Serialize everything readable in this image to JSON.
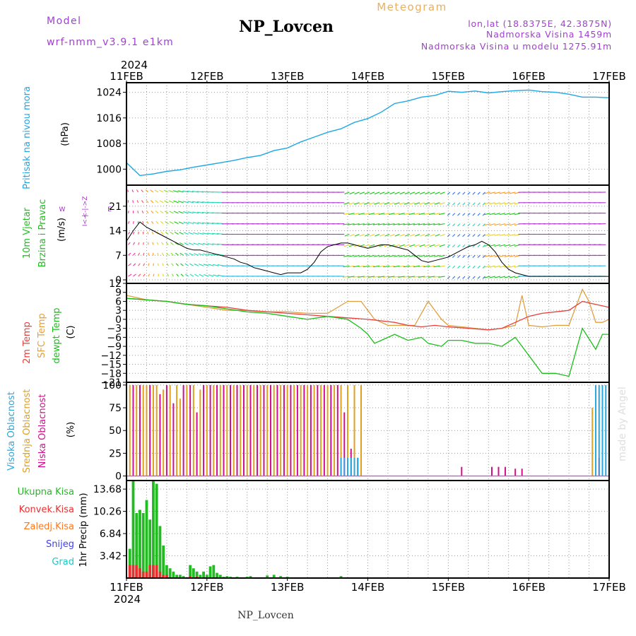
{
  "header": {
    "model_label": "Model",
    "model_name": "wrf-nmm_v3.9.1 e1km",
    "station": "NP_Lovcen",
    "product": "Meteogram",
    "lonlat": "lon,lat (18.8375E, 42.3875N)",
    "elevation": "Nadmorska Visina 1459m",
    "model_elevation": "Nadmorska Visina u modelu 1275.91m",
    "footer_station": "NP_Lovcen",
    "watermark": "made by Angel"
  },
  "colors": {
    "pressure": "#1ea7e6",
    "wind_label": "#1cc01c",
    "wind_dir_label": "#a030c8",
    "temp2m": "#e8403c",
    "sfc": "#e0a040",
    "dewpt": "#18c018",
    "cloud_high": "#28a8e0",
    "cloud_mid": "#e0a020",
    "cloud_low": "#d0108a",
    "precip_total": "#22bb22",
    "precip_conv": "#e83030",
    "precip_strat": "#ff7820",
    "snow": "#4040e8",
    "graupel": "#20c8c8",
    "title": "#000000",
    "meta": "#a040d0",
    "meteogram": "#e8b060"
  },
  "time_axis": {
    "year": "2024",
    "labels": [
      "11FEB",
      "12FEB",
      "13FEB",
      "14FEB",
      "15FEB",
      "16FEB",
      "17FEB"
    ]
  },
  "panels": {
    "pressure": {
      "label_line1": "Pritisak na nivou mora",
      "unit": "(hPa)",
      "ticks": [
        "1000",
        "1008",
        "1016",
        "1024"
      ],
      "ylim": [
        995,
        1027
      ]
    },
    "wind": {
      "label_line1": "10m Vjetar",
      "label_line2": "Brzina i Pravac",
      "unit": "(m/s)",
      "dir_w": "W",
      "dir_e": "E",
      "dir_z": "<-|->Z",
      "dir_i": "I<-|",
      "ticks": [
        "0",
        "7",
        "14",
        "21"
      ],
      "ylim": [
        -1,
        27
      ]
    },
    "temperature": {
      "label_2m": "2m Temp",
      "label_sfc": "SFC Temp",
      "label_dew": "dewpt Temp",
      "unit": "(C)",
      "ticks": [
        "12",
        "9",
        "6",
        "3",
        "0",
        "−3",
        "−6",
        "−9",
        "−12",
        "−15",
        "−18",
        "−21"
      ],
      "ylim": [
        -21,
        12
      ]
    },
    "clouds": {
      "label_high": "Visoka Oblacnost",
      "label_mid": "Srednja Oblacnost",
      "label_low": "Niska Oblacnost",
      "unit": "(%)",
      "ticks": [
        "0",
        "25",
        "50",
        "75",
        "100"
      ],
      "ylim": [
        -5,
        103
      ]
    },
    "precip": {
      "legend_total": "Ukupna Kisa",
      "legend_conv": "Konvek.Kisa",
      "legend_strat": "Zaledj.Kisa",
      "legend_snow": "Snijeg",
      "legend_graupel": "Grad",
      "ylabel": "1hr Precip (mm)",
      "ticks": [
        "3.42",
        "6.84",
        "10.26",
        "13.68"
      ],
      "ylim": [
        0,
        15
      ]
    }
  },
  "chart_data": [
    {
      "type": "line",
      "series_name": "pressure",
      "x_hours": [
        0,
        4,
        8,
        12,
        16,
        20,
        24,
        28,
        32,
        36,
        40,
        44,
        48,
        52,
        56,
        60,
        64,
        68,
        72,
        76,
        80,
        84,
        88,
        92,
        96,
        100,
        104,
        108,
        112,
        116,
        120,
        124,
        128,
        132,
        136,
        140,
        144
      ],
      "values": [
        1002,
        998,
        998.5,
        999.3,
        999.8,
        1000.6,
        1001.3,
        1002,
        1002.7,
        1003.6,
        1004.3,
        1005.8,
        1006.6,
        1008.5,
        1010,
        1011.5,
        1012.6,
        1014.6,
        1015.8,
        1017.8,
        1020.5,
        1021.3,
        1022.5,
        1023,
        1024.3,
        1024,
        1024.4,
        1023.8,
        1024.2,
        1024.5,
        1024.7,
        1024.2,
        1024,
        1023.4,
        1022.5,
        1022.5,
        1022.3
      ]
    },
    {
      "type": "line",
      "series_name": "wind_speed",
      "x_hours": [
        0,
        2,
        4,
        6,
        8,
        10,
        12,
        14,
        16,
        18,
        20,
        22,
        24,
        26,
        28,
        30,
        32,
        34,
        36,
        38,
        40,
        42,
        44,
        46,
        48,
        50,
        52,
        54,
        56,
        58,
        60,
        62,
        64,
        66,
        68,
        70,
        72,
        74,
        76,
        78,
        80,
        82,
        84,
        86,
        88,
        90,
        92,
        94,
        96,
        98,
        100,
        102,
        104,
        106,
        108,
        110,
        112,
        114,
        116,
        118,
        120,
        122,
        124,
        126,
        128,
        130,
        132,
        134,
        136,
        138,
        140,
        142,
        144
      ],
      "values": [
        11,
        14,
        16.5,
        15,
        14,
        13,
        12,
        11,
        10,
        9,
        8.5,
        8.5,
        8,
        7.5,
        7,
        6.5,
        6,
        5,
        4.5,
        3.5,
        3,
        2.5,
        2,
        1.5,
        2,
        2,
        2,
        3,
        5,
        8,
        9.5,
        10,
        10.5,
        10.5,
        10,
        9.5,
        9,
        9.5,
        10,
        10,
        9.5,
        9,
        8.5,
        7,
        5.5,
        5,
        5.5,
        6,
        6.5,
        7.5,
        8.5,
        9.5,
        10,
        11,
        10,
        8,
        5,
        3,
        2,
        1.5,
        1,
        1,
        1,
        1,
        1,
        1,
        1,
        1,
        1,
        1,
        1,
        1,
        1
      ]
    },
    {
      "type": "line",
      "series_name": "temp_2m",
      "x_hours": [
        0,
        6,
        12,
        18,
        24,
        30,
        36,
        42,
        48,
        54,
        60,
        66,
        72,
        76,
        80,
        84,
        88,
        92,
        96,
        102,
        108,
        112,
        116,
        120,
        124,
        128,
        132,
        136,
        140,
        144
      ],
      "values": [
        7,
        6.5,
        6,
        5,
        4.5,
        4,
        3,
        2.5,
        2,
        1.5,
        1,
        0.5,
        0,
        -0.5,
        -1,
        -2,
        -2.5,
        -2,
        -2.5,
        -3,
        -3.5,
        -3,
        -1,
        1,
        2,
        2.5,
        3,
        6,
        5,
        4
      ]
    },
    {
      "type": "line",
      "series_name": "temp_sfc",
      "x_hours": [
        0,
        6,
        12,
        18,
        24,
        30,
        36,
        42,
        48,
        54,
        60,
        66,
        70,
        74,
        78,
        82,
        86,
        90,
        94,
        96,
        100,
        104,
        108,
        112,
        116,
        118,
        120,
        124,
        128,
        132,
        136,
        138,
        140,
        142,
        144
      ],
      "values": [
        8,
        6.5,
        6,
        5,
        4,
        3,
        3,
        2.5,
        2.5,
        2,
        2,
        6,
        6,
        0,
        -2,
        -2,
        -2,
        6,
        0,
        -2,
        -2.5,
        -3,
        -3.5,
        -3,
        -2,
        8,
        -2,
        -2.5,
        -2,
        -2,
        10,
        6,
        -1,
        -1,
        0
      ]
    },
    {
      "type": "line",
      "series_name": "dewpoint",
      "x_hours": [
        0,
        6,
        12,
        18,
        24,
        30,
        36,
        42,
        48,
        54,
        60,
        66,
        70,
        72,
        74,
        78,
        80,
        84,
        88,
        90,
        94,
        96,
        100,
        104,
        108,
        112,
        116,
        118,
        120,
        124,
        128,
        132,
        136,
        140,
        142,
        144
      ],
      "values": [
        7,
        6.5,
        6,
        5,
        4.5,
        3.5,
        2.5,
        2,
        1,
        0,
        1,
        0,
        -3,
        -5,
        -8,
        -6,
        -5,
        -7,
        -6,
        -8,
        -9,
        -7,
        -7,
        -8,
        -8,
        -9,
        -6,
        -9,
        -12,
        -18,
        -18,
        -19,
        -3,
        -10,
        -5,
        -5
      ]
    },
    {
      "type": "bar",
      "series_name": "cloud_mid",
      "x_hours": [
        1,
        3,
        5,
        6,
        8,
        9,
        11,
        13,
        15,
        16,
        18,
        20,
        22,
        24,
        26,
        28,
        30,
        32,
        34,
        36,
        38,
        40,
        42,
        44,
        46,
        48,
        50,
        52,
        54,
        56,
        58,
        60,
        62,
        64,
        66,
        68,
        70,
        139
      ],
      "values": [
        100,
        100,
        100,
        100,
        100,
        100,
        95,
        100,
        100,
        85,
        100,
        100,
        95,
        100,
        100,
        100,
        100,
        100,
        100,
        100,
        100,
        100,
        100,
        100,
        100,
        100,
        100,
        100,
        100,
        100,
        100,
        100,
        100,
        100,
        100,
        100,
        100,
        75
      ]
    },
    {
      "type": "bar",
      "series_name": "cloud_low",
      "x_hours": [
        2,
        4,
        7,
        10,
        12,
        14,
        17,
        19,
        21,
        23,
        25,
        27,
        29,
        31,
        33,
        35,
        37,
        39,
        41,
        43,
        45,
        47,
        49,
        51,
        53,
        55,
        57,
        59,
        61,
        63,
        65,
        67,
        69,
        100,
        109,
        111,
        113,
        116,
        118,
        141
      ],
      "values": [
        100,
        100,
        100,
        90,
        100,
        80,
        100,
        100,
        70,
        100,
        100,
        100,
        100,
        100,
        100,
        100,
        100,
        100,
        100,
        100,
        100,
        100,
        100,
        100,
        100,
        100,
        100,
        100,
        100,
        100,
        70,
        30,
        20,
        10,
        10,
        10,
        10,
        8,
        8,
        20
      ]
    },
    {
      "type": "bar",
      "series_name": "cloud_high",
      "x_hours": [
        64,
        65,
        66,
        67,
        68,
        69,
        140,
        141,
        142,
        143
      ],
      "values": [
        20,
        20,
        20,
        20,
        20,
        20,
        100,
        100,
        100,
        100
      ]
    },
    {
      "type": "bar",
      "series_name": "precip_total",
      "x_hours": [
        1,
        2,
        3,
        4,
        5,
        6,
        7,
        8,
        9,
        10,
        11,
        12,
        13,
        14,
        15,
        16,
        17,
        18,
        19,
        20,
        21,
        22,
        23,
        24,
        25,
        26,
        27,
        28,
        29,
        30,
        31,
        32,
        33,
        34,
        35,
        36,
        37,
        38,
        40,
        42,
        44,
        46,
        48,
        50,
        52,
        54,
        56,
        58,
        60,
        62,
        64,
        66
      ],
      "values": [
        4.5,
        15,
        10,
        10.5,
        10,
        12,
        9,
        15,
        14.5,
        8,
        5,
        2,
        1.5,
        1,
        0.5,
        0.5,
        0.3,
        0,
        2,
        1.5,
        1,
        0.5,
        1,
        0.5,
        1.8,
        2,
        0.8,
        0.5,
        0.2,
        0.3,
        0.2,
        0.1,
        0.2,
        0.1,
        0.1,
        0.2,
        0.3,
        0.1,
        0.1,
        0.4,
        0.5,
        0.3,
        0.2,
        0.1,
        0.1,
        0.1,
        0.1,
        0.1,
        0.1,
        0.1,
        0.3,
        0.1
      ]
    },
    {
      "type": "bar",
      "series_name": "precip_conv",
      "x_hours": [
        1,
        2,
        3,
        4,
        5,
        6,
        7,
        8,
        9,
        10,
        11,
        12,
        19,
        21
      ],
      "values": [
        2,
        2,
        2,
        1.5,
        1,
        1,
        2,
        2,
        2,
        1,
        0.5,
        0.5,
        0.3,
        0.2
      ]
    }
  ]
}
